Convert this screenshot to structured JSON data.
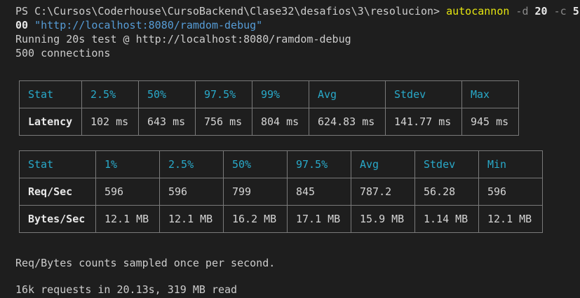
{
  "prompt": {
    "ps_prefix": "PS C:\\Cursos\\Coderhouse\\CursoBackend\\Clase32\\desafios\\3\\resolucion> ",
    "command": "autocannon",
    "flag_d": " -d ",
    "d_value": "20",
    "flag_c": " -c ",
    "c_value_part1": "5",
    "c_value_part2": "00",
    "url_arg": " \"http://localhost:8080/ramdom-debug\""
  },
  "output": {
    "running_line": "Running 20s test @ http://localhost:8080/ramdom-debug",
    "connections_line": "500 connections",
    "sampled_note": "Req/Bytes counts sampled once per second.",
    "summary": "16k requests in 20.13s, 319 MB read"
  },
  "latency_table": {
    "headers": [
      "Stat",
      "2.5%",
      "50%",
      "97.5%",
      "99%",
      "Avg",
      "Stdev",
      "Max"
    ],
    "rows": [
      [
        "Latency",
        "102 ms",
        "643 ms",
        "756 ms",
        "804 ms",
        "624.83 ms",
        "141.77 ms",
        "945 ms"
      ]
    ]
  },
  "throughput_table": {
    "headers": [
      "Stat",
      "1%",
      "2.5%",
      "50%",
      "97.5%",
      "Avg",
      "Stdev",
      "Min"
    ],
    "rows": [
      [
        "Req/Sec",
        "596",
        "596",
        "799",
        "845",
        "787.2",
        "56.28",
        "596"
      ],
      [
        "Bytes/Sec",
        "12.1 MB",
        "12.1 MB",
        "16.2 MB",
        "17.1 MB",
        "15.9 MB",
        "1.14 MB",
        "12.1 MB"
      ]
    ]
  },
  "colors": {
    "background": "#1e1e1e",
    "text": "#cccccc",
    "command": "#e5e510",
    "string": "#569cd6",
    "header_cyan": "#29a9c9",
    "flag_gray": "#8a8a8a",
    "border": "#7a7a7a"
  }
}
